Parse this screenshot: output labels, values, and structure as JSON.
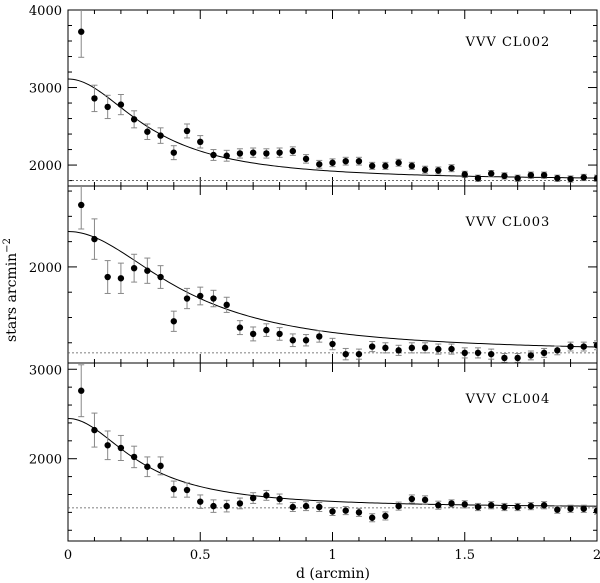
{
  "chart_data": {
    "type": "scatter",
    "xlabel": "d (arcmin)",
    "ylabel": "stars arcmin",
    "ylabel_sup": "−2",
    "xlim": [
      0,
      2
    ],
    "x_ticks": [
      "0",
      "0.5",
      "1",
      "1.5",
      "2"
    ],
    "panels": [
      {
        "label": "VVV CL002",
        "ylim": [
          1730,
          4000
        ],
        "y_ticks": [
          "2000",
          "3000",
          "4000"
        ],
        "y_tick_values": [
          2000,
          3000,
          4000
        ],
        "background": 1800,
        "fit": {
          "amplitude": 1310,
          "r0": 0.32
        },
        "points": [
          [
            0.05,
            3720,
            330
          ],
          [
            0.1,
            2860,
            170
          ],
          [
            0.15,
            2750,
            150
          ],
          [
            0.2,
            2780,
            130
          ],
          [
            0.25,
            2590,
            110
          ],
          [
            0.3,
            2430,
            100
          ],
          [
            0.35,
            2380,
            100
          ],
          [
            0.4,
            2160,
            90
          ],
          [
            0.45,
            2440,
            90
          ],
          [
            0.5,
            2300,
            80
          ],
          [
            0.55,
            2130,
            70
          ],
          [
            0.6,
            2120,
            70
          ],
          [
            0.65,
            2150,
            60
          ],
          [
            0.7,
            2160,
            60
          ],
          [
            0.75,
            2150,
            60
          ],
          [
            0.8,
            2160,
            60
          ],
          [
            0.85,
            2180,
            55
          ],
          [
            0.9,
            2080,
            55
          ],
          [
            0.95,
            2010,
            50
          ],
          [
            1.0,
            2030,
            50
          ],
          [
            1.05,
            2050,
            50
          ],
          [
            1.1,
            2050,
            50
          ],
          [
            1.15,
            1990,
            45
          ],
          [
            1.2,
            1990,
            45
          ],
          [
            1.25,
            2030,
            45
          ],
          [
            1.3,
            1990,
            45
          ],
          [
            1.35,
            1940,
            45
          ],
          [
            1.4,
            1930,
            45
          ],
          [
            1.45,
            1960,
            45
          ],
          [
            1.5,
            1880,
            40
          ],
          [
            1.55,
            1830,
            40
          ],
          [
            1.6,
            1890,
            40
          ],
          [
            1.65,
            1860,
            40
          ],
          [
            1.7,
            1830,
            40
          ],
          [
            1.75,
            1870,
            40
          ],
          [
            1.8,
            1870,
            40
          ],
          [
            1.85,
            1830,
            40
          ],
          [
            1.9,
            1820,
            40
          ],
          [
            1.95,
            1840,
            40
          ],
          [
            2.0,
            1830,
            40
          ]
        ]
      },
      {
        "label": "VVV CL003",
        "ylim": [
          1240,
          2640
        ],
        "y_ticks": [
          "2000"
        ],
        "y_tick_values": [
          2000
        ],
        "background": 1320,
        "fit": {
          "amplitude": 960,
          "r0": 0.45
        },
        "points": [
          [
            0.05,
            2490,
            190
          ],
          [
            0.1,
            2220,
            160
          ],
          [
            0.15,
            1920,
            130
          ],
          [
            0.2,
            1910,
            120
          ],
          [
            0.25,
            1990,
            110
          ],
          [
            0.3,
            1970,
            100
          ],
          [
            0.35,
            1920,
            90
          ],
          [
            0.4,
            1570,
            80
          ],
          [
            0.45,
            1750,
            80
          ],
          [
            0.5,
            1770,
            70
          ],
          [
            0.55,
            1750,
            65
          ],
          [
            0.6,
            1700,
            60
          ],
          [
            0.65,
            1520,
            55
          ],
          [
            0.7,
            1470,
            55
          ],
          [
            0.75,
            1500,
            50
          ],
          [
            0.8,
            1470,
            50
          ],
          [
            0.85,
            1420,
            50
          ],
          [
            0.9,
            1420,
            45
          ],
          [
            0.95,
            1450,
            45
          ],
          [
            1.0,
            1390,
            45
          ],
          [
            1.05,
            1310,
            45
          ],
          [
            1.1,
            1310,
            40
          ],
          [
            1.15,
            1370,
            40
          ],
          [
            1.2,
            1360,
            40
          ],
          [
            1.25,
            1340,
            40
          ],
          [
            1.3,
            1360,
            40
          ],
          [
            1.35,
            1360,
            40
          ],
          [
            1.4,
            1350,
            40
          ],
          [
            1.45,
            1350,
            40
          ],
          [
            1.5,
            1320,
            40
          ],
          [
            1.55,
            1320,
            40
          ],
          [
            1.6,
            1310,
            40
          ],
          [
            1.65,
            1280,
            35
          ],
          [
            1.7,
            1280,
            35
          ],
          [
            1.75,
            1300,
            35
          ],
          [
            1.8,
            1320,
            35
          ],
          [
            1.85,
            1340,
            35
          ],
          [
            1.9,
            1370,
            35
          ],
          [
            1.95,
            1370,
            35
          ],
          [
            2.0,
            1380,
            35
          ]
        ]
      },
      {
        "label": "VVV CL004",
        "ylim": [
          1080,
          3070
        ],
        "y_ticks": [
          "2000",
          "3000"
        ],
        "y_tick_values": [
          2000,
          3000
        ],
        "background": 1450,
        "fit": {
          "amplitude": 1000,
          "r0": 0.28
        },
        "points": [
          [
            0.05,
            2760,
            290
          ],
          [
            0.1,
            2320,
            190
          ],
          [
            0.15,
            2150,
            160
          ],
          [
            0.2,
            2120,
            140
          ],
          [
            0.25,
            2020,
            120
          ],
          [
            0.3,
            1910,
            110
          ],
          [
            0.35,
            1920,
            100
          ],
          [
            0.4,
            1660,
            90
          ],
          [
            0.45,
            1650,
            80
          ],
          [
            0.5,
            1520,
            75
          ],
          [
            0.55,
            1470,
            70
          ],
          [
            0.6,
            1470,
            65
          ],
          [
            0.65,
            1500,
            60
          ],
          [
            0.7,
            1560,
            60
          ],
          [
            0.75,
            1590,
            55
          ],
          [
            0.8,
            1550,
            55
          ],
          [
            0.85,
            1460,
            50
          ],
          [
            0.9,
            1470,
            50
          ],
          [
            0.95,
            1460,
            50
          ],
          [
            1.0,
            1410,
            45
          ],
          [
            1.05,
            1420,
            45
          ],
          [
            1.1,
            1400,
            45
          ],
          [
            1.15,
            1340,
            45
          ],
          [
            1.2,
            1360,
            45
          ],
          [
            1.25,
            1470,
            45
          ],
          [
            1.3,
            1550,
            45
          ],
          [
            1.35,
            1540,
            45
          ],
          [
            1.4,
            1480,
            45
          ],
          [
            1.45,
            1500,
            40
          ],
          [
            1.5,
            1490,
            40
          ],
          [
            1.55,
            1460,
            40
          ],
          [
            1.6,
            1480,
            40
          ],
          [
            1.65,
            1460,
            40
          ],
          [
            1.7,
            1460,
            40
          ],
          [
            1.75,
            1470,
            40
          ],
          [
            1.8,
            1480,
            40
          ],
          [
            1.85,
            1430,
            40
          ],
          [
            1.9,
            1440,
            40
          ],
          [
            1.95,
            1440,
            40
          ],
          [
            2.0,
            1420,
            40
          ]
        ]
      }
    ]
  }
}
